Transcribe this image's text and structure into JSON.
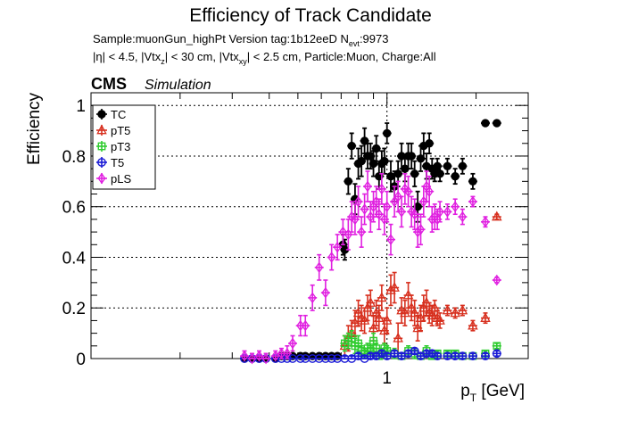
{
  "chart_data": {
    "type": "scatter",
    "title": "Efficiency of Track Candidate",
    "subtitle_line1": {
      "prefix": "Sample:muonGun_highPt   Version tag:1b12eeD  N",
      "sub": "evt",
      "suffix": ":9973"
    },
    "subtitle_line2": {
      "p1": "|η| < 4.5, |Vtx",
      "s1": "z",
      "p2": "| < 30 cm, |Vtx",
      "s2": "xy",
      "p3": "| < 2.5 cm, Particle:Muon, Charge:All"
    },
    "cms_label": "CMS",
    "simulation_label": "Simulation",
    "xlabel": {
      "p": "p",
      "sub": "T",
      "rest": " [GeV]"
    },
    "ylabel": "Efficiency",
    "x_scale": "log",
    "xlim": [
      0.1,
      3.0
    ],
    "ylim": [
      0,
      1.05
    ],
    "x_tick_label": "1",
    "y_ticks": [
      "0",
      "0.2",
      "0.4",
      "0.6",
      "0.8",
      "1"
    ],
    "grid": true,
    "legend_position": "top-left",
    "series": [
      {
        "name": "TC",
        "color": "#000000",
        "marker": "filled-circle",
        "x": [
          0.33,
          0.35,
          0.37,
          0.39,
          0.42,
          0.44,
          0.46,
          0.48,
          0.51,
          0.53,
          0.56,
          0.59,
          0.62,
          0.65,
          0.68,
          0.71,
          0.72,
          0.74,
          0.76,
          0.78,
          0.8,
          0.82,
          0.84,
          0.86,
          0.88,
          0.9,
          0.92,
          0.94,
          0.96,
          0.98,
          1.0,
          1.03,
          1.06,
          1.09,
          1.12,
          1.15,
          1.18,
          1.21,
          1.24,
          1.27,
          1.3,
          1.33,
          1.36,
          1.39,
          1.42,
          1.45,
          1.48,
          1.51,
          1.6,
          1.7,
          1.8,
          1.95,
          2.15,
          2.35
        ],
        "y": [
          0.0,
          0.0,
          0.0,
          0.0,
          0.0,
          0.01,
          0.01,
          0.01,
          0.01,
          0.01,
          0.01,
          0.01,
          0.01,
          0.01,
          0.01,
          0.45,
          0.43,
          0.7,
          0.84,
          0.63,
          0.77,
          0.78,
          0.86,
          0.8,
          0.8,
          0.77,
          0.83,
          0.72,
          0.77,
          0.78,
          0.89,
          0.72,
          0.68,
          0.73,
          0.8,
          0.75,
          0.8,
          0.8,
          0.73,
          0.6,
          0.79,
          0.84,
          0.76,
          0.85,
          0.75,
          0.73,
          0.76,
          0.73,
          0.76,
          0.72,
          0.76,
          0.7,
          0.93,
          0.93
        ],
        "err": [
          0,
          0,
          0,
          0,
          0,
          0,
          0,
          0,
          0,
          0,
          0,
          0,
          0,
          0,
          0,
          0.04,
          0.04,
          0.05,
          0.05,
          0.06,
          0.06,
          0.06,
          0.05,
          0.05,
          0.05,
          0.05,
          0.05,
          0.05,
          0.05,
          0.05,
          0.04,
          0.06,
          0.06,
          0.05,
          0.05,
          0.05,
          0.05,
          0.05,
          0.05,
          0.06,
          0.05,
          0.05,
          0.05,
          0.04,
          0.04,
          0.03,
          0.03,
          0.03,
          0.03,
          0.03,
          0.03,
          0.03,
          0.01,
          0.01
        ]
      },
      {
        "name": "pT5",
        "color": "#d7301f",
        "marker": "open-triangle",
        "x": [
          0.72,
          0.74,
          0.76,
          0.78,
          0.8,
          0.82,
          0.84,
          0.86,
          0.88,
          0.9,
          0.92,
          0.94,
          0.96,
          0.98,
          1.0,
          1.03,
          1.06,
          1.09,
          1.12,
          1.15,
          1.18,
          1.21,
          1.24,
          1.27,
          1.3,
          1.33,
          1.36,
          1.39,
          1.42,
          1.45,
          1.48,
          1.51,
          1.6,
          1.7,
          1.8,
          1.95,
          2.15,
          2.35
        ],
        "y": [
          0.05,
          0.08,
          0.1,
          0.14,
          0.18,
          0.16,
          0.15,
          0.2,
          0.22,
          0.12,
          0.18,
          0.16,
          0.24,
          0.11,
          0.15,
          0.27,
          0.28,
          0.08,
          0.19,
          0.18,
          0.25,
          0.2,
          0.18,
          0.12,
          0.16,
          0.2,
          0.22,
          0.18,
          0.17,
          0.2,
          0.16,
          0.15,
          0.19,
          0.18,
          0.19,
          0.13,
          0.16,
          0.56
        ],
        "err": [
          0.04,
          0.05,
          0.05,
          0.05,
          0.05,
          0.05,
          0.05,
          0.05,
          0.05,
          0.05,
          0.05,
          0.05,
          0.05,
          0.05,
          0.05,
          0.06,
          0.06,
          0.06,
          0.05,
          0.05,
          0.05,
          0.05,
          0.05,
          0.05,
          0.05,
          0.05,
          0.05,
          0.04,
          0.04,
          0.03,
          0.03,
          0.03,
          0.02,
          0.02,
          0.02,
          0.02,
          0.02,
          0.01
        ]
      },
      {
        "name": "pT3",
        "color": "#2ecc2e",
        "marker": "open-square",
        "x": [
          0.72,
          0.74,
          0.76,
          0.78,
          0.8,
          0.82,
          0.84,
          0.86,
          0.88,
          0.9,
          0.92,
          0.94,
          0.96,
          0.98,
          1.0,
          1.06,
          1.12,
          1.18,
          1.24,
          1.3,
          1.36,
          1.42,
          1.48,
          1.6,
          1.7,
          1.8,
          1.95,
          2.15,
          2.35
        ],
        "y": [
          0.06,
          0.07,
          0.08,
          0.05,
          0.06,
          0.03,
          0.02,
          0.04,
          0.03,
          0.07,
          0.04,
          0.01,
          0.02,
          0.04,
          0.03,
          0.02,
          0.01,
          0.03,
          0.02,
          0.01,
          0.03,
          0.01,
          0.02,
          0.02,
          0.02,
          0.01,
          0.01,
          0.02,
          0.05
        ],
        "err": [
          0.03,
          0.03,
          0.03,
          0.03,
          0.03,
          0.02,
          0.02,
          0.02,
          0.02,
          0.03,
          0.02,
          0.01,
          0.01,
          0.02,
          0.02,
          0.02,
          0.01,
          0.02,
          0.02,
          0.01,
          0.02,
          0.01,
          0.01,
          0.01,
          0.01,
          0.01,
          0.01,
          0.01,
          0.01
        ]
      },
      {
        "name": "T5",
        "color": "#1a1ad6",
        "marker": "open-circle",
        "x": [
          0.33,
          0.35,
          0.37,
          0.39,
          0.42,
          0.44,
          0.46,
          0.48,
          0.51,
          0.53,
          0.56,
          0.59,
          0.62,
          0.65,
          0.68,
          0.72,
          0.76,
          0.8,
          0.84,
          0.88,
          0.92,
          0.96,
          1.0,
          1.06,
          1.12,
          1.18,
          1.24,
          1.3,
          1.36,
          1.42,
          1.48,
          1.6,
          1.7,
          1.8,
          1.95,
          2.15,
          2.35
        ],
        "y": [
          0.0,
          0.0,
          0.0,
          0.0,
          0.0,
          0.0,
          0.0,
          0.0,
          0.0,
          0.0,
          0.0,
          0.0,
          0.0,
          0.0,
          0.0,
          0.0,
          0.0,
          0.01,
          0.0,
          0.01,
          0.01,
          0.02,
          0.01,
          0.02,
          0.01,
          0.02,
          0.03,
          0.01,
          0.02,
          0.02,
          0.01,
          0.01,
          0.01,
          0.01,
          0.01,
          0.01,
          0.02
        ],
        "err": [
          0,
          0,
          0,
          0,
          0,
          0,
          0,
          0,
          0,
          0,
          0,
          0,
          0,
          0,
          0,
          0.01,
          0.01,
          0.01,
          0.01,
          0.01,
          0.01,
          0.01,
          0.01,
          0.01,
          0.01,
          0.01,
          0.01,
          0.01,
          0.01,
          0.01,
          0.01,
          0.01,
          0.01,
          0.01,
          0.01,
          0.01,
          0.01
        ]
      },
      {
        "name": "pLS",
        "color": "#e020e0",
        "marker": "open-diamond",
        "x": [
          0.33,
          0.35,
          0.37,
          0.39,
          0.42,
          0.44,
          0.46,
          0.48,
          0.51,
          0.53,
          0.56,
          0.59,
          0.62,
          0.65,
          0.68,
          0.71,
          0.74,
          0.76,
          0.78,
          0.8,
          0.82,
          0.84,
          0.86,
          0.88,
          0.9,
          0.92,
          0.94,
          0.96,
          0.98,
          1.0,
          1.03,
          1.06,
          1.09,
          1.12,
          1.15,
          1.18,
          1.21,
          1.24,
          1.27,
          1.3,
          1.33,
          1.36,
          1.39,
          1.42,
          1.45,
          1.48,
          1.51,
          1.6,
          1.7,
          1.8,
          1.95,
          2.15,
          2.35
        ],
        "y": [
          0.01,
          0.0,
          0.01,
          0.0,
          0.01,
          0.02,
          0.02,
          0.06,
          0.13,
          0.13,
          0.24,
          0.36,
          0.26,
          0.4,
          0.44,
          0.5,
          0.49,
          0.56,
          0.55,
          0.62,
          0.5,
          0.59,
          0.68,
          0.56,
          0.6,
          0.62,
          0.57,
          0.67,
          0.55,
          0.6,
          0.47,
          0.62,
          0.64,
          0.58,
          0.67,
          0.66,
          0.58,
          0.57,
          0.5,
          0.51,
          0.62,
          0.68,
          0.66,
          0.55,
          0.56,
          0.55,
          0.58,
          0.58,
          0.6,
          0.56,
          0.62,
          0.54,
          0.31
        ],
        "err": [
          0.02,
          0.02,
          0.02,
          0.02,
          0.02,
          0.02,
          0.03,
          0.03,
          0.04,
          0.04,
          0.05,
          0.05,
          0.05,
          0.05,
          0.05,
          0.05,
          0.06,
          0.06,
          0.06,
          0.06,
          0.06,
          0.06,
          0.06,
          0.06,
          0.06,
          0.06,
          0.06,
          0.06,
          0.06,
          0.06,
          0.06,
          0.06,
          0.06,
          0.06,
          0.06,
          0.06,
          0.06,
          0.06,
          0.06,
          0.06,
          0.06,
          0.06,
          0.06,
          0.05,
          0.05,
          0.04,
          0.04,
          0.03,
          0.03,
          0.03,
          0.02,
          0.02,
          0.01
        ]
      }
    ]
  }
}
